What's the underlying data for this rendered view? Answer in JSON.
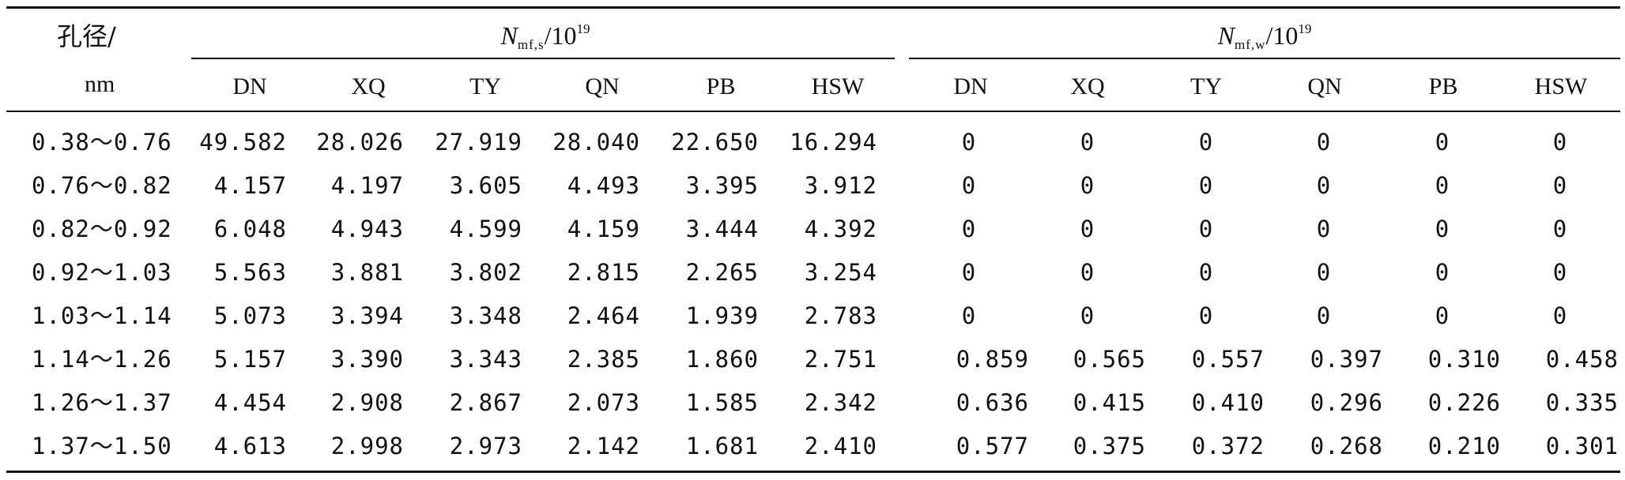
{
  "header": {
    "row_label_line1": "孔径/",
    "row_label_line2": "nm",
    "group_s": {
      "symbol": "N",
      "subscript": "mf,s",
      "unit_base": "/10",
      "unit_exp": "19"
    },
    "group_w": {
      "symbol": "N",
      "subscript": "mf,w",
      "unit_base": "/10",
      "unit_exp": "19"
    },
    "columns_s": [
      "DN",
      "XQ",
      "TY",
      "QN",
      "PB",
      "HSW"
    ],
    "columns_w": [
      "DN",
      "XQ",
      "TY",
      "QN",
      "PB",
      "HSW"
    ]
  },
  "rows": [
    {
      "range": "0.38～0.76",
      "s": [
        "49.582",
        "28.026",
        "27.919",
        "28.040",
        "22.650",
        "16.294"
      ],
      "w": [
        "0",
        "0",
        "0",
        "0",
        "0",
        "0"
      ]
    },
    {
      "range": "0.76～0.82",
      "s": [
        "4.157",
        "4.197",
        "3.605",
        "4.493",
        "3.395",
        "3.912"
      ],
      "w": [
        "0",
        "0",
        "0",
        "0",
        "0",
        "0"
      ]
    },
    {
      "range": "0.82～0.92",
      "s": [
        "6.048",
        "4.943",
        "4.599",
        "4.159",
        "3.444",
        "4.392"
      ],
      "w": [
        "0",
        "0",
        "0",
        "0",
        "0",
        "0"
      ]
    },
    {
      "range": "0.92～1.03",
      "s": [
        "5.563",
        "3.881",
        "3.802",
        "2.815",
        "2.265",
        "3.254"
      ],
      "w": [
        "0",
        "0",
        "0",
        "0",
        "0",
        "0"
      ]
    },
    {
      "range": "1.03～1.14",
      "s": [
        "5.073",
        "3.394",
        "3.348",
        "2.464",
        "1.939",
        "2.783"
      ],
      "w": [
        "0",
        "0",
        "0",
        "0",
        "0",
        "0"
      ]
    },
    {
      "range": "1.14～1.26",
      "s": [
        "5.157",
        "3.390",
        "3.343",
        "2.385",
        "1.860",
        "2.751"
      ],
      "w": [
        "0.859",
        "0.565",
        "0.557",
        "0.397",
        "0.310",
        "0.458"
      ]
    },
    {
      "range": "1.26～1.37",
      "s": [
        "4.454",
        "2.908",
        "2.867",
        "2.073",
        "1.585",
        "2.342"
      ],
      "w": [
        "0.636",
        "0.415",
        "0.410",
        "0.296",
        "0.226",
        "0.335"
      ]
    },
    {
      "range": "1.37～1.50",
      "s": [
        "4.613",
        "2.998",
        "2.973",
        "2.142",
        "1.681",
        "2.410"
      ],
      "w": [
        "0.577",
        "0.375",
        "0.372",
        "0.268",
        "0.210",
        "0.301"
      ]
    }
  ]
}
